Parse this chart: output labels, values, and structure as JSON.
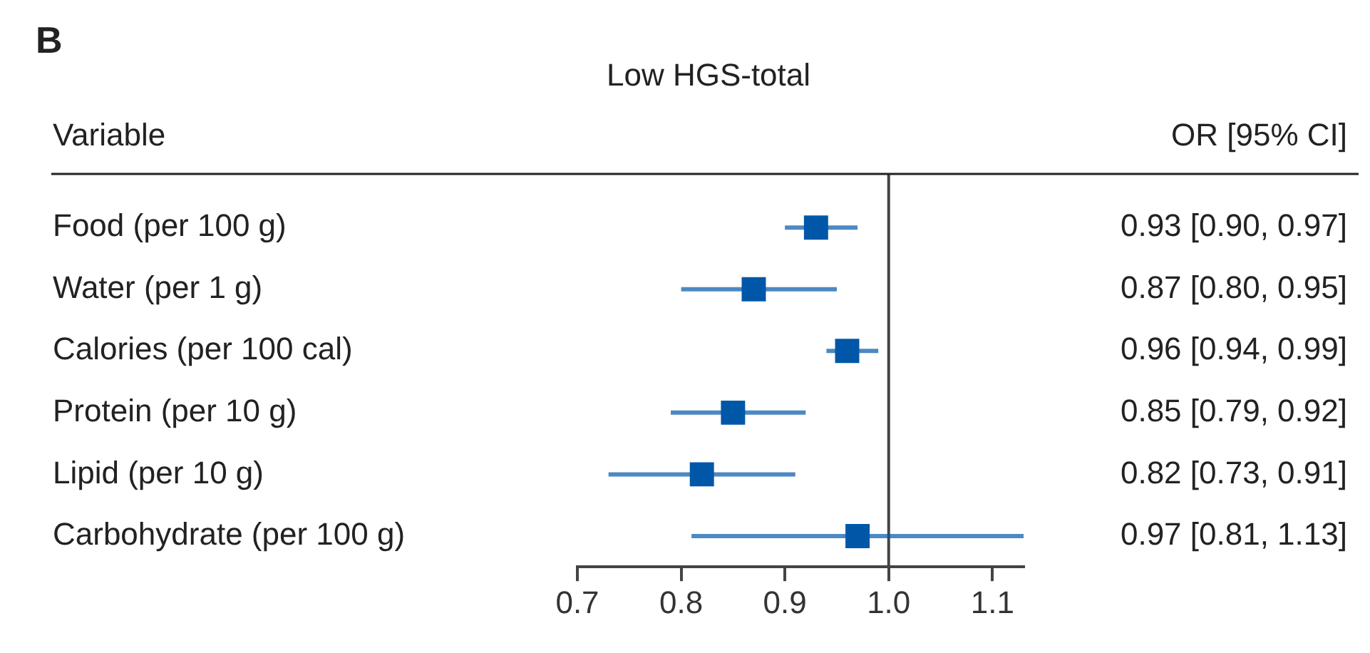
{
  "chart_data": {
    "type": "scatter",
    "orientation": "horizontal",
    "title": "Low HGS-total",
    "ylabel": "Variable",
    "annotations": [
      "B",
      "OR [95% CI]"
    ],
    "categories": [
      "Food (per 100 g)",
      "Water (per 1 g)",
      "Calories (per 100 cal)",
      "Protein (per 10 g)",
      "Lipid (per 10 g)",
      "Carbohydrate (per 100 g)"
    ],
    "values": [
      0.93,
      0.87,
      0.96,
      0.85,
      0.82,
      0.97
    ],
    "errors": [
      [
        0.9,
        0.97
      ],
      [
        0.8,
        0.95
      ],
      [
        0.94,
        0.99
      ],
      [
        0.79,
        0.92
      ],
      [
        0.73,
        0.91
      ],
      [
        0.81,
        1.13
      ]
    ],
    "value_labels": [
      "0.93 [0.90, 0.97]",
      "0.87 [0.80, 0.95]",
      "0.96 [0.94, 0.99]",
      "0.85 [0.79, 0.92]",
      "0.82 [0.73, 0.91]",
      "0.97 [0.81, 1.13]"
    ],
    "color": "#0057a8",
    "marker": "square",
    "grid": false,
    "legend": false,
    "xlim": [
      0.7,
      1.13
    ],
    "xticks": [
      {
        "value": 0.7,
        "label": "0.7"
      },
      {
        "value": 0.8,
        "label": "0.8"
      },
      {
        "value": 0.9,
        "label": "0.9"
      },
      {
        "value": 1.0,
        "label": "1.0"
      },
      {
        "value": 1.1,
        "label": "1.1"
      }
    ],
    "ref_lines": [
      {
        "axis": "x",
        "value": 1,
        "color": "#444444"
      }
    ]
  }
}
